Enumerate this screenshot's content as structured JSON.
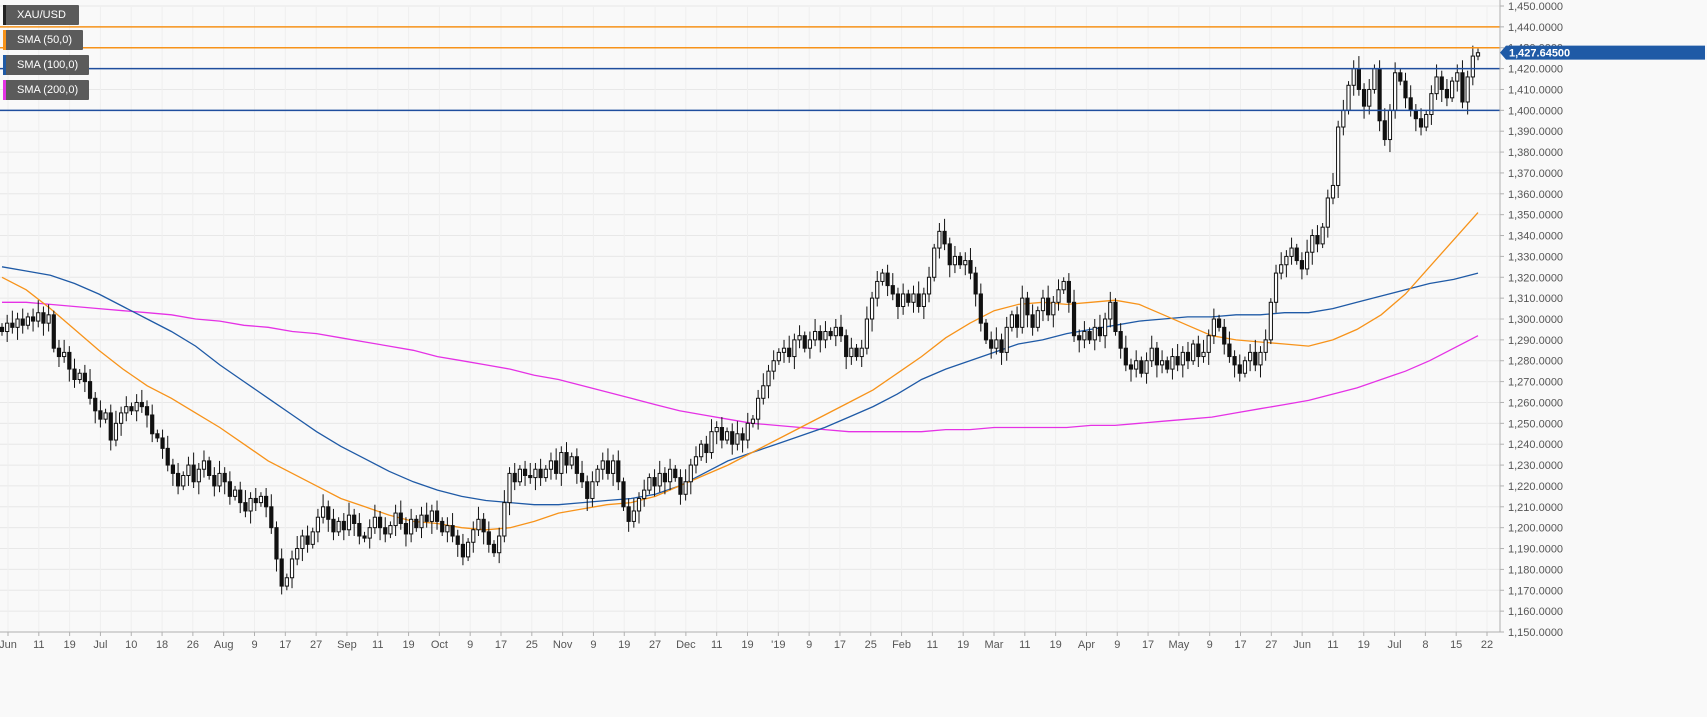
{
  "chart_data": {
    "type": "candlestick",
    "symbol": "XAU/USD",
    "ylim": [
      1150,
      1450
    ],
    "y_ticks": [
      "1,150.0000",
      "1,160.0000",
      "1,170.0000",
      "1,180.0000",
      "1,190.0000",
      "1,200.0000",
      "1,210.0000",
      "1,220.0000",
      "1,230.0000",
      "1,240.0000",
      "1,250.0000",
      "1,260.0000",
      "1,270.0000",
      "1,280.0000",
      "1,290.0000",
      "1,300.0000",
      "1,310.0000",
      "1,320.0000",
      "1,330.0000",
      "1,340.0000",
      "1,350.0000",
      "1,360.0000",
      "1,370.0000",
      "1,380.0000",
      "1,390.0000",
      "1,400.0000",
      "1,410.0000",
      "1,420.0000",
      "1,430.0000",
      "1,440.0000",
      "1,450.0000"
    ],
    "x_ticks": [
      "Jun",
      "11",
      "19",
      "Jul",
      "10",
      "18",
      "26",
      "Aug",
      "9",
      "17",
      "27",
      "Sep",
      "11",
      "19",
      "Oct",
      "9",
      "17",
      "25",
      "Nov",
      "9",
      "19",
      "27",
      "Dec",
      "11",
      "19",
      "'19",
      "9",
      "17",
      "25",
      "Feb",
      "11",
      "19",
      "Mar",
      "11",
      "19",
      "Apr",
      "9",
      "17",
      "May",
      "9",
      "17",
      "27",
      "Jun",
      "11",
      "19",
      "Jul",
      "8",
      "15",
      "22"
    ],
    "last_price": "1,427.64500",
    "legend": [
      {
        "label": "XAU/USD",
        "color": "#222222"
      },
      {
        "label": "SMA (50,0)",
        "color": "#f7931a"
      },
      {
        "label": "SMA (100,0)",
        "color": "#1f5aa6"
      },
      {
        "label": "SMA (200,0)",
        "color": "#e532e5"
      }
    ],
    "horizontal_levels": [
      {
        "value": 1440,
        "color": "#f7931a"
      },
      {
        "value": 1430,
        "color": "#f7931a"
      },
      {
        "value": 1420,
        "color": "#1f4e9e"
      },
      {
        "value": 1400,
        "color": "#1f4e9e"
      }
    ],
    "sma50": [
      1320,
      1314,
      1305,
      1295,
      1285,
      1276,
      1268,
      1262,
      1255,
      1248,
      1240,
      1232,
      1226,
      1220,
      1214,
      1210,
      1206,
      1203,
      1202,
      1200,
      1199,
      1200,
      1203,
      1207,
      1209,
      1211,
      1212,
      1215,
      1220,
      1225,
      1230,
      1236,
      1242,
      1248,
      1254,
      1260,
      1266,
      1274,
      1282,
      1291,
      1298,
      1304,
      1307,
      1308,
      1307,
      1308,
      1309,
      1307,
      1302,
      1297,
      1292,
      1290,
      1289,
      1288,
      1287,
      1290,
      1295,
      1302,
      1312,
      1325,
      1338,
      1351
    ],
    "sma100": [
      1325,
      1323,
      1321,
      1317,
      1312,
      1306,
      1300,
      1294,
      1287,
      1278,
      1270,
      1262,
      1254,
      1246,
      1239,
      1233,
      1227,
      1222,
      1218,
      1215,
      1213,
      1212,
      1211,
      1211,
      1212,
      1213,
      1214,
      1216,
      1220,
      1226,
      1232,
      1236,
      1240,
      1244,
      1248,
      1253,
      1258,
      1264,
      1271,
      1276,
      1280,
      1284,
      1288,
      1290,
      1293,
      1295,
      1297,
      1299,
      1300,
      1301,
      1301,
      1302,
      1302,
      1303,
      1303,
      1305,
      1308,
      1311,
      1314,
      1317,
      1319,
      1322
    ],
    "sma200": [
      1308,
      1308,
      1307,
      1306,
      1305,
      1304,
      1303,
      1302,
      1300,
      1299,
      1297,
      1296,
      1294,
      1293,
      1291,
      1289,
      1287,
      1285,
      1282,
      1280,
      1278,
      1276,
      1273,
      1271,
      1268,
      1265,
      1262,
      1259,
      1256,
      1254,
      1252,
      1250,
      1249,
      1248,
      1247,
      1246,
      1246,
      1246,
      1246,
      1247,
      1247,
      1248,
      1248,
      1248,
      1248,
      1249,
      1249,
      1250,
      1251,
      1252,
      1253,
      1255,
      1257,
      1259,
      1261,
      1264,
      1267,
      1271,
      1275,
      1280,
      1286,
      1292
    ],
    "candles": [
      {
        "o": 1296,
        "c": 1294
      },
      {
        "o": 1294,
        "c": 1298
      },
      {
        "o": 1298,
        "c": 1296
      },
      {
        "o": 1296,
        "c": 1300
      },
      {
        "o": 1300,
        "c": 1297
      },
      {
        "o": 1297,
        "c": 1301
      },
      {
        "o": 1301,
        "c": 1299
      },
      {
        "o": 1299,
        "c": 1303
      },
      {
        "o": 1303,
        "c": 1298
      },
      {
        "o": 1298,
        "c": 1302
      },
      {
        "o": 1302,
        "c": 1286
      },
      {
        "o": 1286,
        "c": 1282
      },
      {
        "o": 1282,
        "c": 1284
      },
      {
        "o": 1284,
        "c": 1276
      },
      {
        "o": 1276,
        "c": 1271
      },
      {
        "o": 1271,
        "c": 1274
      },
      {
        "o": 1274,
        "c": 1270
      },
      {
        "o": 1270,
        "c": 1262
      },
      {
        "o": 1262,
        "c": 1256
      },
      {
        "o": 1256,
        "c": 1252
      },
      {
        "o": 1252,
        "c": 1255
      },
      {
        "o": 1255,
        "c": 1242
      },
      {
        "o": 1242,
        "c": 1250
      },
      {
        "o": 1250,
        "c": 1255
      },
      {
        "o": 1255,
        "c": 1258
      },
      {
        "o": 1258,
        "c": 1256
      },
      {
        "o": 1256,
        "c": 1260
      },
      {
        "o": 1260,
        "c": 1258
      },
      {
        "o": 1258,
        "c": 1254
      },
      {
        "o": 1254,
        "c": 1245
      },
      {
        "o": 1245,
        "c": 1243
      },
      {
        "o": 1243,
        "c": 1238
      },
      {
        "o": 1238,
        "c": 1230
      },
      {
        "o": 1230,
        "c": 1226
      },
      {
        "o": 1226,
        "c": 1220
      },
      {
        "o": 1220,
        "c": 1225
      },
      {
        "o": 1225,
        "c": 1230
      },
      {
        "o": 1230,
        "c": 1222
      },
      {
        "o": 1222,
        "c": 1228
      },
      {
        "o": 1228,
        "c": 1232
      },
      {
        "o": 1232,
        "c": 1225
      },
      {
        "o": 1225,
        "c": 1220
      },
      {
        "o": 1220,
        "c": 1226
      },
      {
        "o": 1226,
        "c": 1222
      },
      {
        "o": 1222,
        "c": 1215
      },
      {
        "o": 1215,
        "c": 1218
      },
      {
        "o": 1218,
        "c": 1212
      },
      {
        "o": 1212,
        "c": 1208
      },
      {
        "o": 1208,
        "c": 1214
      },
      {
        "o": 1214,
        "c": 1212
      },
      {
        "o": 1212,
        "c": 1215
      },
      {
        "o": 1215,
        "c": 1210
      },
      {
        "o": 1210,
        "c": 1200
      },
      {
        "o": 1200,
        "c": 1185
      },
      {
        "o": 1185,
        "c": 1172
      },
      {
        "o": 1172,
        "c": 1176
      },
      {
        "o": 1176,
        "c": 1185
      },
      {
        "o": 1185,
        "c": 1190
      },
      {
        "o": 1190,
        "c": 1196
      },
      {
        "o": 1196,
        "c": 1192
      },
      {
        "o": 1192,
        "c": 1198
      },
      {
        "o": 1198,
        "c": 1205
      },
      {
        "o": 1205,
        "c": 1210
      },
      {
        "o": 1210,
        "c": 1204
      },
      {
        "o": 1204,
        "c": 1198
      },
      {
        "o": 1198,
        "c": 1203
      },
      {
        "o": 1203,
        "c": 1199
      },
      {
        "o": 1199,
        "c": 1206
      },
      {
        "o": 1206,
        "c": 1202
      },
      {
        "o": 1202,
        "c": 1196
      },
      {
        "o": 1196,
        "c": 1195
      },
      {
        "o": 1195,
        "c": 1200
      },
      {
        "o": 1200,
        "c": 1205
      },
      {
        "o": 1205,
        "c": 1200
      },
      {
        "o": 1200,
        "c": 1197
      },
      {
        "o": 1197,
        "c": 1201
      },
      {
        "o": 1201,
        "c": 1207
      },
      {
        "o": 1207,
        "c": 1202
      },
      {
        "o": 1202,
        "c": 1197
      },
      {
        "o": 1197,
        "c": 1204
      },
      {
        "o": 1204,
        "c": 1200
      },
      {
        "o": 1200,
        "c": 1206
      },
      {
        "o": 1206,
        "c": 1203
      },
      {
        "o": 1203,
        "c": 1208
      },
      {
        "o": 1208,
        "c": 1203
      },
      {
        "o": 1203,
        "c": 1198
      },
      {
        "o": 1198,
        "c": 1201
      },
      {
        "o": 1201,
        "c": 1196
      },
      {
        "o": 1196,
        "c": 1192
      },
      {
        "o": 1192,
        "c": 1186
      },
      {
        "o": 1186,
        "c": 1193
      },
      {
        "o": 1193,
        "c": 1199
      },
      {
        "o": 1199,
        "c": 1204
      },
      {
        "o": 1204,
        "c": 1198
      },
      {
        "o": 1198,
        "c": 1192
      },
      {
        "o": 1192,
        "c": 1188
      },
      {
        "o": 1188,
        "c": 1196
      },
      {
        "o": 1196,
        "c": 1212
      },
      {
        "o": 1212,
        "c": 1226
      },
      {
        "o": 1226,
        "c": 1222
      },
      {
        "o": 1222,
        "c": 1228
      },
      {
        "o": 1228,
        "c": 1225
      },
      {
        "o": 1225,
        "c": 1224
      },
      {
        "o": 1224,
        "c": 1228
      },
      {
        "o": 1228,
        "c": 1224
      },
      {
        "o": 1224,
        "c": 1228
      },
      {
        "o": 1228,
        "c": 1232
      },
      {
        "o": 1232,
        "c": 1226
      },
      {
        "o": 1226,
        "c": 1236
      },
      {
        "o": 1236,
        "c": 1230
      },
      {
        "o": 1230,
        "c": 1234
      },
      {
        "o": 1234,
        "c": 1226
      },
      {
        "o": 1226,
        "c": 1222
      },
      {
        "o": 1222,
        "c": 1214
      },
      {
        "o": 1214,
        "c": 1222
      },
      {
        "o": 1222,
        "c": 1228
      },
      {
        "o": 1228,
        "c": 1232
      },
      {
        "o": 1232,
        "c": 1226
      },
      {
        "o": 1226,
        "c": 1232
      },
      {
        "o": 1232,
        "c": 1222
      },
      {
        "o": 1222,
        "c": 1210
      },
      {
        "o": 1210,
        "c": 1203
      },
      {
        "o": 1203,
        "c": 1208
      },
      {
        "o": 1208,
        "c": 1214
      },
      {
        "o": 1214,
        "c": 1218
      },
      {
        "o": 1218,
        "c": 1224
      },
      {
        "o": 1224,
        "c": 1220
      },
      {
        "o": 1220,
        "c": 1226
      },
      {
        "o": 1226,
        "c": 1222
      },
      {
        "o": 1222,
        "c": 1228
      },
      {
        "o": 1228,
        "c": 1224
      },
      {
        "o": 1224,
        "c": 1216
      },
      {
        "o": 1216,
        "c": 1222
      },
      {
        "o": 1222,
        "c": 1230
      },
      {
        "o": 1230,
        "c": 1234
      },
      {
        "o": 1234,
        "c": 1240
      },
      {
        "o": 1240,
        "c": 1236
      },
      {
        "o": 1236,
        "c": 1246
      },
      {
        "o": 1246,
        "c": 1248
      },
      {
        "o": 1248,
        "c": 1242
      },
      {
        "o": 1242,
        "c": 1246
      },
      {
        "o": 1246,
        "c": 1240
      },
      {
        "o": 1240,
        "c": 1245
      },
      {
        "o": 1245,
        "c": 1242
      },
      {
        "o": 1242,
        "c": 1250
      },
      {
        "o": 1250,
        "c": 1252
      },
      {
        "o": 1252,
        "c": 1262
      },
      {
        "o": 1262,
        "c": 1268
      },
      {
        "o": 1268,
        "c": 1275
      },
      {
        "o": 1275,
        "c": 1280
      },
      {
        "o": 1280,
        "c": 1284
      },
      {
        "o": 1284,
        "c": 1286
      },
      {
        "o": 1286,
        "c": 1282
      },
      {
        "o": 1282,
        "c": 1290
      },
      {
        "o": 1290,
        "c": 1292
      },
      {
        "o": 1292,
        "c": 1286
      },
      {
        "o": 1286,
        "c": 1290
      },
      {
        "o": 1290,
        "c": 1294
      },
      {
        "o": 1294,
        "c": 1290
      },
      {
        "o": 1290,
        "c": 1294
      },
      {
        "o": 1294,
        "c": 1292
      },
      {
        "o": 1292,
        "c": 1296
      },
      {
        "o": 1296,
        "c": 1292
      },
      {
        "o": 1292,
        "c": 1282
      },
      {
        "o": 1282,
        "c": 1286
      },
      {
        "o": 1286,
        "c": 1282
      },
      {
        "o": 1282,
        "c": 1286
      },
      {
        "o": 1286,
        "c": 1300
      },
      {
        "o": 1300,
        "c": 1310
      },
      {
        "o": 1310,
        "c": 1318
      },
      {
        "o": 1318,
        "c": 1322
      },
      {
        "o": 1322,
        "c": 1316
      },
      {
        "o": 1316,
        "c": 1312
      },
      {
        "o": 1312,
        "c": 1306
      },
      {
        "o": 1306,
        "c": 1312
      },
      {
        "o": 1312,
        "c": 1308
      },
      {
        "o": 1308,
        "c": 1312
      },
      {
        "o": 1312,
        "c": 1306
      },
      {
        "o": 1306,
        "c": 1312
      },
      {
        "o": 1312,
        "c": 1320
      },
      {
        "o": 1320,
        "c": 1334
      },
      {
        "o": 1334,
        "c": 1342
      },
      {
        "o": 1342,
        "c": 1336
      },
      {
        "o": 1336,
        "c": 1326
      },
      {
        "o": 1326,
        "c": 1330
      },
      {
        "o": 1330,
        "c": 1326
      },
      {
        "o": 1326,
        "c": 1328
      },
      {
        "o": 1328,
        "c": 1322
      },
      {
        "o": 1322,
        "c": 1312
      },
      {
        "o": 1312,
        "c": 1298
      },
      {
        "o": 1298,
        "c": 1290
      },
      {
        "o": 1290,
        "c": 1286
      },
      {
        "o": 1286,
        "c": 1290
      },
      {
        "o": 1290,
        "c": 1284
      },
      {
        "o": 1284,
        "c": 1296
      },
      {
        "o": 1296,
        "c": 1302
      },
      {
        "o": 1302,
        "c": 1296
      },
      {
        "o": 1296,
        "c": 1310
      },
      {
        "o": 1310,
        "c": 1302
      },
      {
        "o": 1302,
        "c": 1296
      },
      {
        "o": 1296,
        "c": 1304
      },
      {
        "o": 1304,
        "c": 1310
      },
      {
        "o": 1310,
        "c": 1302
      },
      {
        "o": 1302,
        "c": 1308
      },
      {
        "o": 1308,
        "c": 1314
      },
      {
        "o": 1314,
        "c": 1318
      },
      {
        "o": 1318,
        "c": 1308
      },
      {
        "o": 1308,
        "c": 1292
      },
      {
        "o": 1292,
        "c": 1290
      },
      {
        "o": 1290,
        "c": 1294
      },
      {
        "o": 1294,
        "c": 1290
      },
      {
        "o": 1290,
        "c": 1296
      },
      {
        "o": 1296,
        "c": 1292
      },
      {
        "o": 1292,
        "c": 1300
      },
      {
        "o": 1300,
        "c": 1308
      },
      {
        "o": 1308,
        "c": 1294
      },
      {
        "o": 1294,
        "c": 1286
      },
      {
        "o": 1286,
        "c": 1278
      },
      {
        "o": 1278,
        "c": 1276
      },
      {
        "o": 1276,
        "c": 1280
      },
      {
        "o": 1280,
        "c": 1274
      },
      {
        "o": 1274,
        "c": 1280
      },
      {
        "o": 1280,
        "c": 1286
      },
      {
        "o": 1286,
        "c": 1278
      },
      {
        "o": 1278,
        "c": 1280
      },
      {
        "o": 1280,
        "c": 1276
      },
      {
        "o": 1276,
        "c": 1282
      },
      {
        "o": 1282,
        "c": 1278
      },
      {
        "o": 1278,
        "c": 1284
      },
      {
        "o": 1284,
        "c": 1280
      },
      {
        "o": 1280,
        "c": 1288
      },
      {
        "o": 1288,
        "c": 1282
      },
      {
        "o": 1282,
        "c": 1284
      },
      {
        "o": 1284,
        "c": 1292
      },
      {
        "o": 1292,
        "c": 1300
      },
      {
        "o": 1300,
        "c": 1296
      },
      {
        "o": 1296,
        "c": 1288
      },
      {
        "o": 1288,
        "c": 1282
      },
      {
        "o": 1282,
        "c": 1278
      },
      {
        "o": 1278,
        "c": 1274
      },
      {
        "o": 1274,
        "c": 1280
      },
      {
        "o": 1280,
        "c": 1284
      },
      {
        "o": 1284,
        "c": 1278
      },
      {
        "o": 1278,
        "c": 1284
      },
      {
        "o": 1284,
        "c": 1290
      },
      {
        "o": 1290,
        "c": 1308
      },
      {
        "o": 1308,
        "c": 1322
      },
      {
        "o": 1322,
        "c": 1326
      },
      {
        "o": 1326,
        "c": 1330
      },
      {
        "o": 1330,
        "c": 1334
      },
      {
        "o": 1334,
        "c": 1328
      },
      {
        "o": 1328,
        "c": 1324
      },
      {
        "o": 1324,
        "c": 1332
      },
      {
        "o": 1332,
        "c": 1340
      },
      {
        "o": 1340,
        "c": 1336
      },
      {
        "o": 1336,
        "c": 1344
      },
      {
        "o": 1344,
        "c": 1358
      },
      {
        "o": 1358,
        "c": 1364
      },
      {
        "o": 1364,
        "c": 1392
      },
      {
        "o": 1392,
        "c": 1400
      },
      {
        "o": 1400,
        "c": 1412
      },
      {
        "o": 1412,
        "c": 1420
      },
      {
        "o": 1420,
        "c": 1410
      },
      {
        "o": 1410,
        "c": 1402
      },
      {
        "o": 1402,
        "c": 1410
      },
      {
        "o": 1410,
        "c": 1420
      },
      {
        "o": 1420,
        "c": 1395
      },
      {
        "o": 1395,
        "c": 1386
      },
      {
        "o": 1386,
        "c": 1400
      },
      {
        "o": 1400,
        "c": 1418
      },
      {
        "o": 1418,
        "c": 1414
      },
      {
        "o": 1414,
        "c": 1406
      },
      {
        "o": 1406,
        "c": 1400
      },
      {
        "o": 1400,
        "c": 1396
      },
      {
        "o": 1396,
        "c": 1392
      },
      {
        "o": 1392,
        "c": 1398
      },
      {
        "o": 1398,
        "c": 1408
      },
      {
        "o": 1408,
        "c": 1416
      },
      {
        "o": 1416,
        "c": 1410
      },
      {
        "o": 1410,
        "c": 1406
      },
      {
        "o": 1406,
        "c": 1414
      },
      {
        "o": 1414,
        "c": 1418
      },
      {
        "o": 1418,
        "c": 1404
      },
      {
        "o": 1404,
        "c": 1416
      },
      {
        "o": 1416,
        "c": 1426
      },
      {
        "o": 1426,
        "c": 1427.6
      }
    ]
  }
}
